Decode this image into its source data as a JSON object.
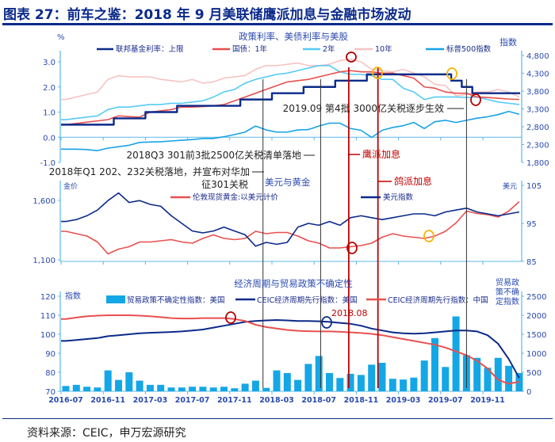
{
  "title": "图表 27：前车之鉴：2018 年 9 月美联储鹰派加息与金融市场波动",
  "source": "资料来源：CEIC，申万宏源研究",
  "colors": {
    "navy": "#0b2a8a",
    "red": "#e8504f",
    "light_blue": "#55cbf5",
    "pink": "#f7c3c3",
    "sp_blue": "#16a2e6",
    "bar_blue": "#14a7e6",
    "event_red": "#c00000",
    "circle_orange": "#f5b400",
    "circle_red": "#b00000",
    "axis": "#5bb8e8"
  },
  "chart_data": [
    {
      "type": "line",
      "title": "政策利率、美债利率与美股",
      "ylabel_left": "%",
      "ylabel_right": "指数",
      "ylim_left": [
        -1.0,
        3.3
      ],
      "ylim_right": [
        1800,
        4800
      ],
      "yticks_left": [
        "-1.0",
        "0.0",
        "1.0",
        "2.0",
        "3.0"
      ],
      "yticks_right": [
        "1,800",
        "2,300",
        "2,800",
        "3,300",
        "3,800",
        "4,300",
        "4,800"
      ],
      "x_start": "2016-07",
      "legend_placement": "top",
      "series": [
        {
          "name": "联邦基金利率：上限",
          "axis": "left",
          "step": true,
          "color": "navy",
          "values": [
            0.5,
            0.5,
            0.5,
            0.5,
            0.5,
            0.75,
            0.75,
            0.75,
            1.0,
            1.0,
            1.0,
            1.25,
            1.25,
            1.25,
            1.25,
            1.25,
            1.25,
            1.5,
            1.5,
            1.5,
            1.75,
            1.75,
            1.75,
            2.0,
            2.0,
            2.0,
            2.25,
            2.25,
            2.25,
            2.5,
            2.5,
            2.5,
            2.5,
            2.5,
            2.5,
            2.5,
            2.5,
            2.25,
            2.0,
            1.75,
            1.75,
            1.75,
            1.75,
            1.75
          ]
        },
        {
          "name": "国债：1年",
          "axis": "left",
          "color": "red",
          "values": [
            0.5,
            0.55,
            0.6,
            0.65,
            0.7,
            0.85,
            0.82,
            0.8,
            1.0,
            1.05,
            1.1,
            1.2,
            1.2,
            1.22,
            1.25,
            1.3,
            1.45,
            1.6,
            1.75,
            1.9,
            2.05,
            2.2,
            2.25,
            2.3,
            2.4,
            2.5,
            2.6,
            2.65,
            2.6,
            2.6,
            2.55,
            2.55,
            2.45,
            2.35,
            2.0,
            1.95,
            1.8,
            1.75,
            1.75,
            1.6,
            1.58,
            1.55,
            1.52,
            1.5
          ]
        },
        {
          "name": "2年",
          "axis": "left",
          "color": "light_blue",
          "values": [
            0.7,
            0.75,
            0.8,
            0.85,
            1.1,
            1.2,
            1.2,
            1.25,
            1.3,
            1.3,
            1.35,
            1.35,
            1.4,
            1.45,
            1.6,
            1.8,
            1.9,
            2.15,
            2.3,
            2.4,
            2.5,
            2.55,
            2.65,
            2.75,
            2.85,
            2.85,
            2.6,
            2.5,
            2.5,
            2.45,
            2.3,
            2.3,
            1.95,
            1.8,
            1.5,
            1.6,
            1.6,
            1.6,
            1.58,
            1.6,
            1.5,
            1.4,
            1.35,
            1.3
          ]
        },
        {
          "name": "10年",
          "axis": "left",
          "color": "pink",
          "values": [
            1.5,
            1.6,
            1.7,
            1.8,
            2.3,
            2.45,
            2.4,
            2.4,
            2.4,
            2.3,
            2.25,
            2.2,
            2.3,
            2.15,
            2.2,
            2.35,
            2.4,
            2.45,
            2.7,
            2.85,
            2.85,
            2.9,
            2.95,
            2.85,
            2.85,
            2.9,
            3.05,
            3.1,
            3.0,
            2.7,
            2.65,
            2.6,
            2.7,
            2.55,
            2.4,
            2.1,
            2.05,
            1.65,
            1.7,
            1.8,
            1.8,
            1.9,
            1.8,
            1.6
          ]
        },
        {
          "name": "标普500指数",
          "axis": "right",
          "color": "sp_blue",
          "values": [
            2170,
            2170,
            2160,
            2130,
            2200,
            2240,
            2280,
            2360,
            2370,
            2380,
            2400,
            2420,
            2440,
            2470,
            2470,
            2520,
            2580,
            2650,
            2820,
            2710,
            2650,
            2650,
            2710,
            2720,
            2820,
            2900,
            2900,
            2750,
            2700,
            2500,
            2700,
            2780,
            2830,
            2920,
            2750,
            2940,
            2980,
            2920,
            2980,
            3040,
            3080,
            3140,
            3230,
            3150
          ]
        }
      ]
    },
    {
      "type": "line",
      "title": "美元与黄金",
      "ylabel_left": "金价",
      "ylabel_right": "美元",
      "ylim_left": [
        1100,
        1680
      ],
      "ylim_right": [
        85,
        105
      ],
      "yticks_left": [
        "1,100",
        "1,600"
      ],
      "yticks_right": [
        "85",
        "95",
        "105"
      ],
      "x_start": "2016-07",
      "series": [
        {
          "name": "伦敦现货黄金:以美元计价",
          "axis": "left",
          "color": "red",
          "values": [
            1340,
            1320,
            1300,
            1250,
            1150,
            1190,
            1210,
            1250,
            1250,
            1260,
            1270,
            1250,
            1240,
            1280,
            1310,
            1280,
            1270,
            1280,
            1340,
            1320,
            1330,
            1330,
            1300,
            1260,
            1240,
            1200,
            1200,
            1210,
            1220,
            1240,
            1290,
            1320,
            1300,
            1290,
            1280,
            1300,
            1340,
            1410,
            1510,
            1490,
            1480,
            1460,
            1510,
            1590
          ]
        },
        {
          "name": "美元指数",
          "axis": "right",
          "color": "navy",
          "values": [
            95.5,
            96,
            97,
            98.5,
            101,
            103,
            100.5,
            101,
            100,
            99.5,
            97,
            95,
            93,
            92.5,
            93,
            94,
            93,
            92,
            89,
            90,
            89.5,
            90,
            94,
            95,
            94.5,
            95.5,
            94.5,
            96.5,
            97,
            96.5,
            96,
            96.5,
            97,
            97.5,
            97.5,
            97,
            98,
            98.5,
            99,
            98,
            97.5,
            97,
            97.5,
            98
          ]
        }
      ]
    },
    {
      "type": "bar+line",
      "title": "经济周期与贸易政策不确定性",
      "ylabel_left": "指数",
      "ylabel_right": [
        "贸易政",
        "策不确",
        "定指数"
      ],
      "ylim_left": [
        70,
        120
      ],
      "ylim_right": [
        0,
        2500
      ],
      "yticks_left": [
        "70",
        "80",
        "90",
        "100",
        "110",
        "120"
      ],
      "yticks_right": [
        "0",
        "500",
        "1000",
        "1500",
        "2000",
        "2500"
      ],
      "x_start": "2016-07",
      "xticks": [
        "2016-07",
        "2016-11",
        "2017-03",
        "2017-07",
        "2017-11",
        "2018-03",
        "2018-07",
        "2018-11",
        "2019-03",
        "2019-07",
        "2019-11"
      ],
      "bars": {
        "name": "贸易政策不确定性指数：美国",
        "axis": "right",
        "color": "bar_blue",
        "values": [
          140,
          170,
          120,
          100,
          550,
          300,
          500,
          280,
          170,
          170,
          100,
          100,
          120,
          120,
          100,
          120,
          80,
          200,
          280,
          90,
          550,
          480,
          300,
          720,
          930,
          480,
          350,
          460,
          430,
          700,
          750,
          330,
          310,
          360,
          810,
          1400,
          640,
          1970,
          950,
          880,
          620,
          880,
          670,
          480
        ]
      },
      "series": [
        {
          "name": "CEIC经济周期先行指数：美国",
          "axis": "left",
          "color": "navy",
          "values": [
            96.5,
            97,
            97.5,
            98,
            99,
            99.5,
            100,
            100.5,
            100.8,
            101,
            101.2,
            101.5,
            102,
            102.5,
            103.5,
            104.5,
            105.5,
            106.5,
            107,
            107.3,
            107.5,
            107.3,
            107,
            107,
            106.8,
            106.5,
            106,
            105.5,
            104.5,
            103,
            102,
            101,
            100.5,
            100.3,
            100.5,
            101,
            101.5,
            102,
            102,
            101.5,
            99.5,
            95,
            87,
            77
          ]
        },
        {
          "name": "CEIC经济周期先行指数：中国",
          "axis": "left",
          "color": "red",
          "values": [
            108,
            108.8,
            109.5,
            109.8,
            110,
            110,
            110,
            109.8,
            109.5,
            109,
            108.5,
            108.3,
            108.3,
            108.5,
            108.5,
            108.5,
            108,
            107,
            105,
            103.8,
            103,
            102.3,
            101.8,
            101.6,
            101.5,
            101.5,
            101.3,
            101,
            100.7,
            100.2,
            99.5,
            98.5,
            97.5,
            96.5,
            95.5,
            94.5,
            93,
            91,
            89,
            86,
            82,
            76,
            74,
            75
          ]
        }
      ]
    }
  ],
  "events": {
    "black_lines": [
      "2018-01-22",
      "2018-07-06",
      "2019-09-01"
    ],
    "red_lines": [
      "2018-09-26",
      "2018-12-19"
    ]
  },
  "annotations": {
    "tariff_2019_09": "2019.09 第4批 3000亿关税逐步生效",
    "tariff_2018_q3": "2018Q3 301前3批2500亿关税清单落地",
    "tariff_2018_q1_line1": "2018年Q1 202、232关税落地，并宣布对华加",
    "tariff_2018_q1_line2": "征301关税",
    "hawkish_hike": "鹰派加息",
    "dovish_hike": "鸽派加息",
    "date_2018_08": "2018.08"
  }
}
